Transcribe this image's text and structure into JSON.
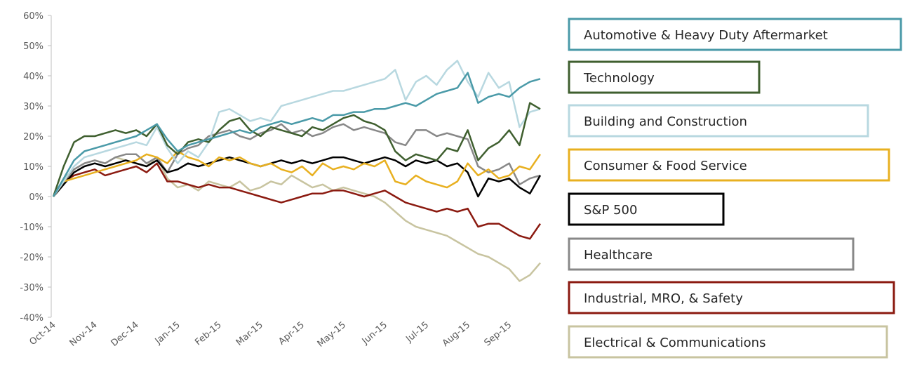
{
  "chart_data": {
    "type": "line",
    "categories": [
      "Oct-14",
      null,
      null,
      null,
      "Nov-14",
      null,
      null,
      null,
      "Dec-14",
      null,
      null,
      null,
      "Jan-15",
      null,
      null,
      null,
      "Feb-15",
      null,
      null,
      null,
      "Mar-15",
      null,
      null,
      null,
      "Apr-15",
      null,
      null,
      null,
      "May-15",
      null,
      null,
      null,
      "Jun-15",
      null,
      null,
      null,
      "Jul-15",
      null,
      null,
      null,
      "Aug-15",
      null,
      null,
      null,
      "Sep-15",
      null,
      null,
      null
    ],
    "ylim": [
      -40,
      60
    ],
    "yticks": [
      {
        "value": -40,
        "label": "-40%"
      },
      {
        "value": -30,
        "label": "-30%"
      },
      {
        "value": -20,
        "label": "-20%"
      },
      {
        "value": -10,
        "label": "-10%"
      },
      {
        "value": 0,
        "label": "0%"
      },
      {
        "value": 10,
        "label": "10%"
      },
      {
        "value": 20,
        "label": "20%"
      },
      {
        "value": 30,
        "label": "30%"
      },
      {
        "value": 40,
        "label": "40%"
      },
      {
        "value": 50,
        "label": "50%"
      },
      {
        "value": 60,
        "label": "60%"
      }
    ],
    "grid": false,
    "legend": "right",
    "series": [
      {
        "name": "Automotive & Heavy Duty Aftermarket",
        "color": "#4a9aa8",
        "values": [
          0,
          6,
          12,
          15,
          16,
          17,
          18,
          19,
          20,
          22,
          24,
          19,
          15,
          17,
          18,
          19,
          20,
          21,
          22,
          21,
          23,
          24,
          25,
          24,
          25,
          26,
          25,
          27,
          27,
          28,
          28,
          29,
          29,
          30,
          31,
          30,
          32,
          34,
          35,
          36,
          41,
          31,
          33,
          34,
          33,
          36,
          38,
          39
        ]
      },
      {
        "name": "Technology",
        "color": "#3f5f2f",
        "values": [
          0,
          10,
          18,
          20,
          20,
          21,
          22,
          21,
          22,
          20,
          24,
          17,
          14,
          18,
          19,
          18,
          22,
          25,
          26,
          22,
          20,
          23,
          22,
          21,
          20,
          23,
          22,
          24,
          26,
          27,
          25,
          24,
          22,
          15,
          12,
          14,
          13,
          12,
          16,
          15,
          22,
          12,
          16,
          18,
          22,
          17,
          31,
          29
        ]
      },
      {
        "name": "Building and Construction",
        "color": "#b8d8e0",
        "values": [
          0,
          5,
          10,
          13,
          14,
          15,
          16,
          17,
          18,
          17,
          23,
          16,
          11,
          15,
          13,
          18,
          28,
          29,
          27,
          25,
          26,
          25,
          30,
          31,
          32,
          33,
          34,
          35,
          35,
          36,
          37,
          38,
          39,
          42,
          32,
          38,
          40,
          37,
          42,
          45,
          38,
          33,
          41,
          36,
          38,
          23,
          28,
          29
        ]
      },
      {
        "name": "Consumer & Food Service",
        "color": "#e8b020",
        "values": [
          0,
          5,
          6,
          7,
          8,
          9,
          10,
          11,
          12,
          14,
          13,
          11,
          15,
          13,
          12,
          10,
          13,
          12,
          13,
          11,
          10,
          11,
          9,
          8,
          10,
          7,
          11,
          9,
          10,
          9,
          11,
          10,
          12,
          5,
          4,
          7,
          5,
          4,
          3,
          5,
          11,
          7,
          9,
          6,
          7,
          10,
          9,
          14
        ]
      },
      {
        "name": "S&P 500",
        "color": "#000000",
        "values": [
          0,
          4,
          8,
          10,
          11,
          10,
          11,
          12,
          11,
          10,
          12,
          8,
          9,
          11,
          10,
          11,
          12,
          13,
          12,
          11,
          10,
          11,
          12,
          11,
          12,
          11,
          12,
          13,
          13,
          12,
          11,
          12,
          13,
          12,
          10,
          12,
          11,
          12,
          10,
          11,
          8,
          0,
          6,
          5,
          6,
          3,
          1,
          7
        ]
      },
      {
        "name": "Healthcare",
        "color": "#888888",
        "values": [
          0,
          5,
          9,
          11,
          12,
          11,
          13,
          14,
          14,
          11,
          13,
          8,
          14,
          16,
          17,
          20,
          21,
          22,
          20,
          19,
          21,
          22,
          24,
          21,
          22,
          20,
          21,
          23,
          24,
          22,
          23,
          22,
          21,
          18,
          17,
          22,
          22,
          20,
          21,
          20,
          19,
          10,
          8,
          9,
          11,
          4,
          6,
          7
        ]
      },
      {
        "name": "Industrial, MRO, & Safety",
        "color": "#8b1a10",
        "values": [
          0,
          5,
          7,
          8,
          9,
          7,
          8,
          9,
          10,
          8,
          11,
          5,
          5,
          4,
          3,
          4,
          3,
          3,
          2,
          1,
          0,
          -1,
          -2,
          -1,
          0,
          1,
          1,
          2,
          2,
          1,
          0,
          1,
          2,
          0,
          -2,
          -3,
          -4,
          -5,
          -4,
          -5,
          -4,
          -10,
          -9,
          -9,
          -11,
          -13,
          -14,
          -9
        ]
      },
      {
        "name": "Electrical & Communications",
        "color": "#c8c4a0",
        "values": [
          0,
          6,
          9,
          11,
          12,
          11,
          13,
          12,
          11,
          10,
          13,
          6,
          3,
          4,
          2,
          5,
          4,
          3,
          5,
          2,
          3,
          5,
          4,
          7,
          5,
          3,
          4,
          2,
          3,
          2,
          1,
          0,
          -2,
          -5,
          -8,
          -10,
          -11,
          -12,
          -13,
          -15,
          -17,
          -19,
          -20,
          -22,
          -24,
          -28,
          -26,
          -22
        ]
      }
    ]
  }
}
